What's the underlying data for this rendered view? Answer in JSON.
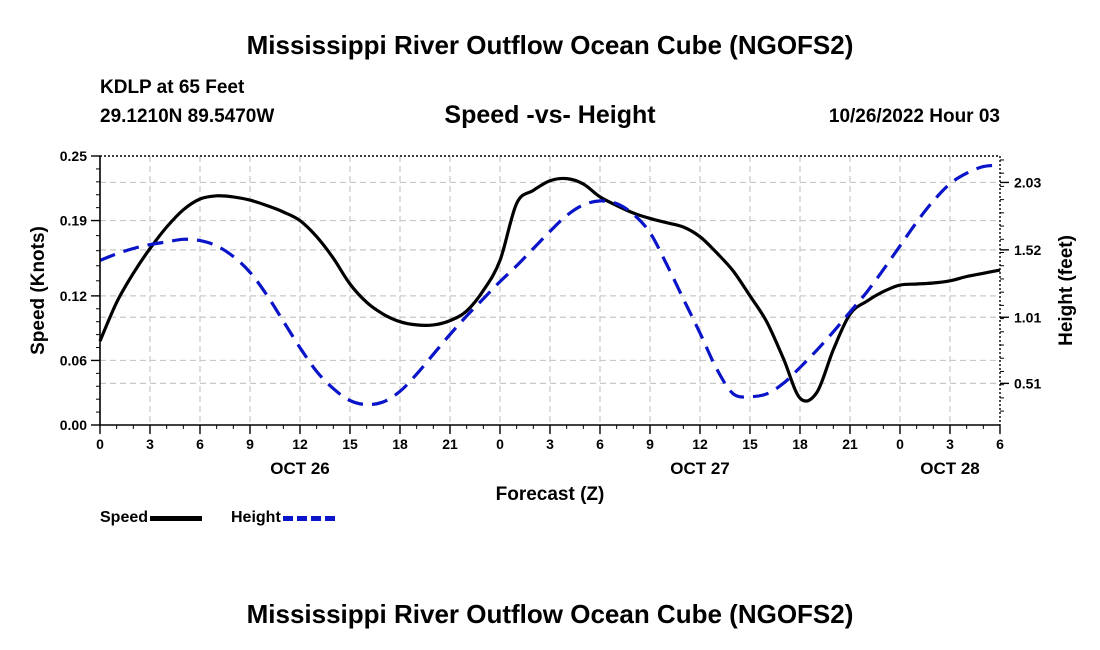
{
  "page": {
    "title": "Mississippi River Outflow Ocean Cube (NGOFS2)",
    "station": "KDLP at 65 Feet",
    "coords": "29.1210N  89.5470W",
    "subtitle": "Speed -vs- Height",
    "timestamp": "10/26/2022 Hour 03",
    "repeated_title": "Mississippi River Outflow Ocean Cube (NGOFS2)"
  },
  "legend": {
    "speed_label": "Speed",
    "height_label": "Height"
  },
  "colors": {
    "speed": "#000000",
    "height": "#0a14c8",
    "grid": "#c8c8c8"
  },
  "chart_data": {
    "type": "line",
    "title": "Speed -vs- Height",
    "xlabel": "Forecast (Z)",
    "ylabel": "Speed (Knots)",
    "y2label": "Height (feet)",
    "xlim": [
      0,
      54
    ],
    "ylim": [
      0,
      0.25
    ],
    "y2lim": [
      0.195,
      2.23
    ],
    "x_ticks": [
      0,
      3,
      6,
      9,
      12,
      15,
      18,
      21,
      24,
      27,
      30,
      33,
      36,
      39,
      42,
      45,
      48,
      51,
      54
    ],
    "x_tick_labels": [
      "0",
      "3",
      "6",
      "9",
      "12",
      "15",
      "18",
      "21",
      "0",
      "3",
      "6",
      "9",
      "12",
      "15",
      "18",
      "21",
      "0",
      "3",
      "6"
    ],
    "date_labels": [
      {
        "x": 12,
        "label": "OCT 26"
      },
      {
        "x": 36,
        "label": "OCT 27"
      },
      {
        "x": 51,
        "label": "OCT 28"
      }
    ],
    "y_ticks": [
      0.0,
      0.06,
      0.12,
      0.19,
      0.25
    ],
    "y_tick_labels": [
      "0.00",
      "0.06",
      "0.12",
      "0.19",
      "0.25"
    ],
    "y2_ticks": [
      0.51,
      1.01,
      1.52,
      2.03
    ],
    "y2_tick_labels": [
      "0.51",
      "1.01",
      "1.52",
      "2.03"
    ],
    "grid": true,
    "legend_position": "bottom-left",
    "series": [
      {
        "name": "Speed",
        "axis": "left",
        "style": "solid",
        "x": [
          0,
          1,
          2,
          3,
          4,
          5,
          6,
          7,
          8,
          9,
          10,
          11,
          12,
          13,
          14,
          15,
          16,
          17,
          18,
          19,
          20,
          21,
          22,
          23,
          24,
          25,
          26,
          27,
          28,
          29,
          30,
          31,
          32,
          33,
          34,
          35,
          36,
          37,
          38,
          39,
          40,
          41,
          42,
          43,
          44,
          45,
          46,
          47,
          48,
          49,
          50,
          51,
          52,
          53,
          54
        ],
        "values": [
          0.078,
          0.114,
          0.141,
          0.164,
          0.184,
          0.2,
          0.21,
          0.213,
          0.212,
          0.209,
          0.204,
          0.198,
          0.19,
          0.175,
          0.155,
          0.131,
          0.114,
          0.103,
          0.096,
          0.093,
          0.093,
          0.097,
          0.106,
          0.125,
          0.153,
          0.206,
          0.218,
          0.227,
          0.229,
          0.224,
          0.212,
          0.204,
          0.197,
          0.192,
          0.188,
          0.184,
          0.175,
          0.16,
          0.143,
          0.12,
          0.096,
          0.062,
          0.025,
          0.03,
          0.07,
          0.103,
          0.115,
          0.124,
          0.13,
          0.131,
          0.132,
          0.134,
          0.138,
          0.141,
          0.144
        ]
      },
      {
        "name": "Height",
        "axis": "right",
        "style": "dashed",
        "x": [
          0,
          1,
          2,
          3,
          4,
          5,
          6,
          7,
          8,
          9,
          10,
          11,
          12,
          13,
          14,
          15,
          16,
          17,
          18,
          19,
          20,
          21,
          22,
          23,
          24,
          25,
          26,
          27,
          28,
          29,
          30,
          31,
          32,
          33,
          34,
          35,
          36,
          37,
          38,
          39,
          40,
          41,
          42,
          43,
          44,
          45,
          46,
          47,
          48,
          49,
          50,
          51,
          52,
          53,
          54
        ],
        "values": [
          1.44,
          1.49,
          1.53,
          1.56,
          1.58,
          1.6,
          1.59,
          1.55,
          1.47,
          1.35,
          1.18,
          0.98,
          0.78,
          0.6,
          0.47,
          0.38,
          0.35,
          0.37,
          0.45,
          0.58,
          0.73,
          0.88,
          1.02,
          1.15,
          1.28,
          1.4,
          1.53,
          1.66,
          1.78,
          1.86,
          1.89,
          1.87,
          1.79,
          1.65,
          1.41,
          1.15,
          0.89,
          0.62,
          0.43,
          0.41,
          0.43,
          0.51,
          0.63,
          0.76,
          0.9,
          1.05,
          1.2,
          1.37,
          1.55,
          1.73,
          1.89,
          2.02,
          2.1,
          2.15,
          2.16
        ]
      }
    ]
  }
}
